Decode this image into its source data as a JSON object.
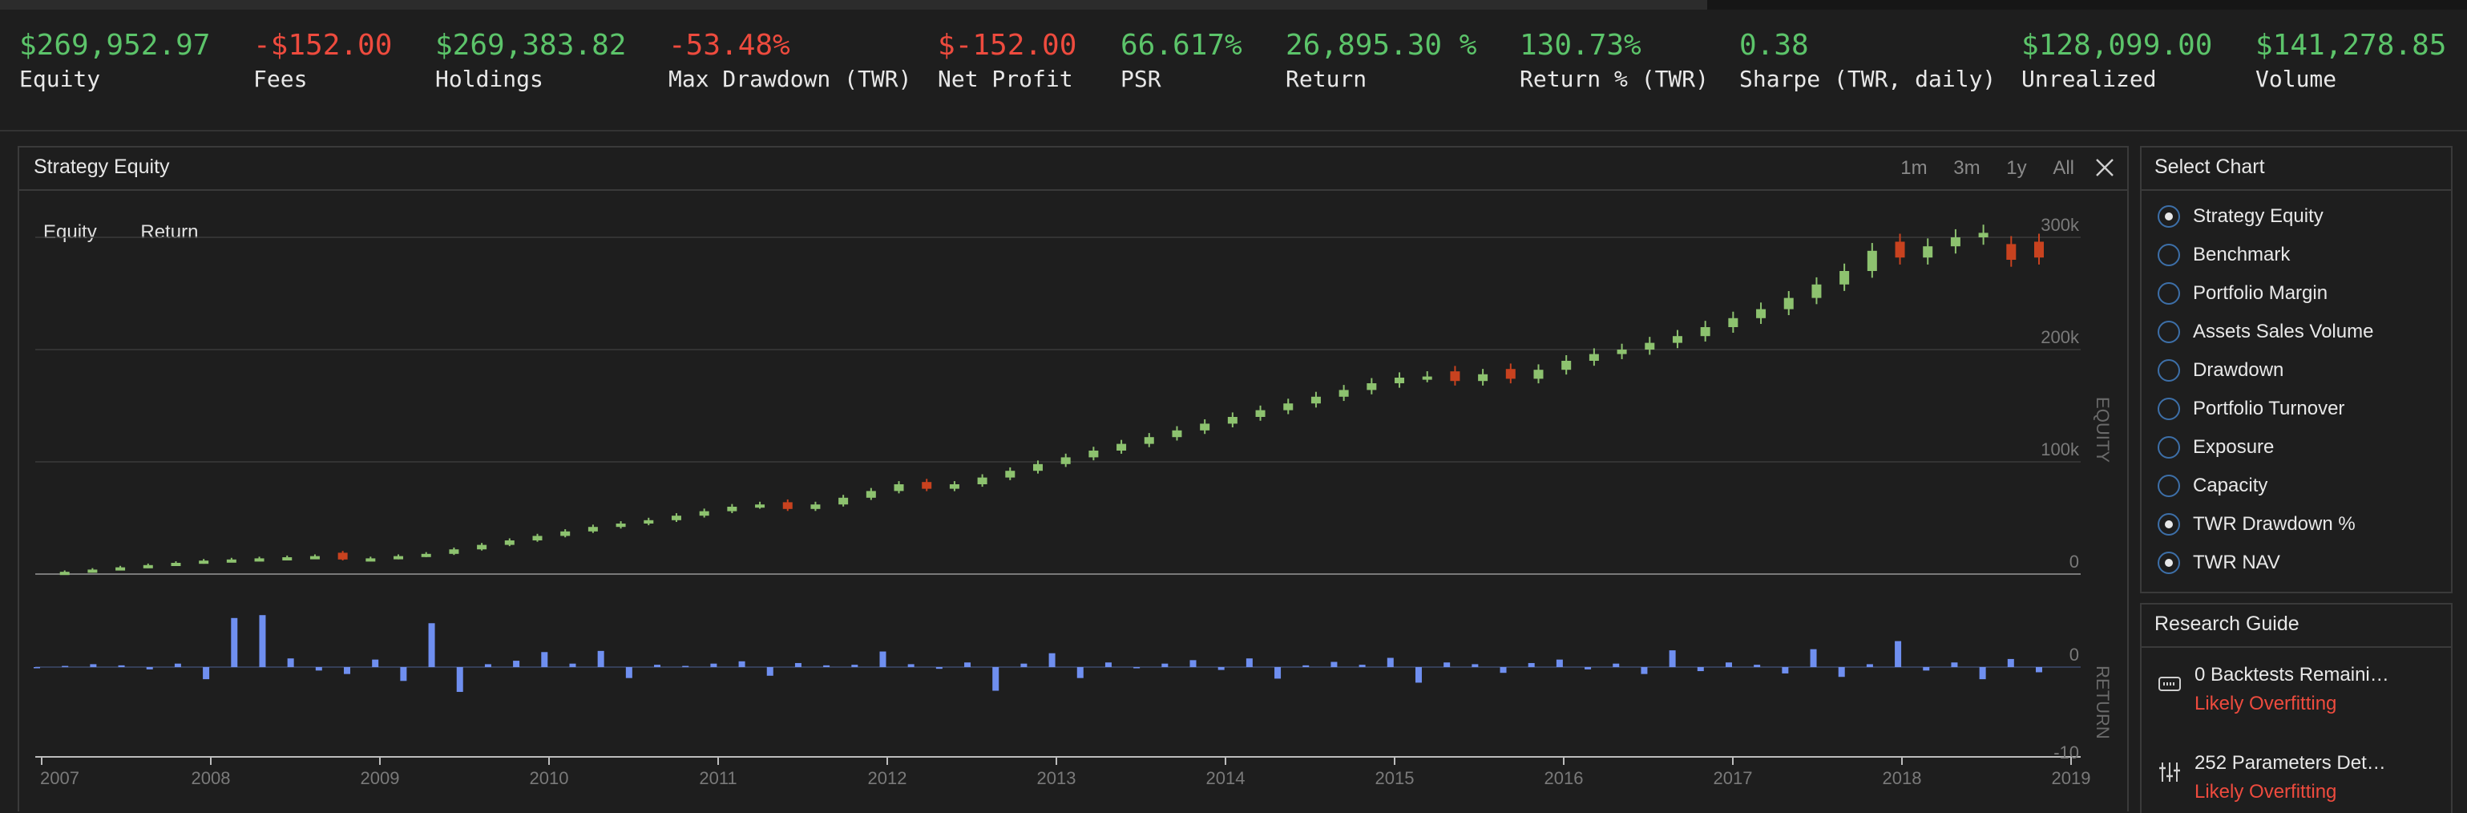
{
  "stats": [
    {
      "value": "$269,952.97",
      "label": "Equity",
      "color": "green"
    },
    {
      "value": "-$152.00",
      "label": "Fees",
      "color": "red"
    },
    {
      "value": "$269,383.82",
      "label": "Holdings",
      "color": "green"
    },
    {
      "value": "-53.48%",
      "label": "Max Drawdown (TWR)",
      "color": "red"
    },
    {
      "value": "$-152.00",
      "label": "Net Profit",
      "color": "red"
    },
    {
      "value": "66.617%",
      "label": "PSR",
      "color": "green"
    },
    {
      "value": "26,895.30 %",
      "label": "Return",
      "color": "green"
    },
    {
      "value": "130.73%",
      "label": "Return % (TWR)",
      "color": "green"
    },
    {
      "value": "0.38",
      "label": "Sharpe (TWR, daily)",
      "color": "green"
    },
    {
      "value": "$128,099.00",
      "label": "Unrealized",
      "color": "green"
    },
    {
      "value": "$141,278.85",
      "label": "Volume",
      "color": "green"
    }
  ],
  "chart_panel": {
    "title": "Strategy Equity",
    "ranges": [
      "1m",
      "3m",
      "1y",
      "All"
    ],
    "legend": [
      "Equity",
      "Return"
    ]
  },
  "chart_data": {
    "type": "candlestick",
    "x_range": [
      "2007",
      "2019"
    ],
    "x_ticks": [
      "2007",
      "2008",
      "2009",
      "2010",
      "2011",
      "2012",
      "2013",
      "2014",
      "2015",
      "2016",
      "2017",
      "2018",
      "2019"
    ],
    "equity": {
      "axis_label": "EQUITY",
      "y_ticks": [
        "0",
        "100k",
        "200k",
        "300k"
      ],
      "ylim": [
        0,
        300000
      ],
      "close_values": [
        0,
        2000,
        4000,
        6000,
        8000,
        10000,
        12000,
        13000,
        14000,
        15000,
        16000,
        13000,
        14000,
        16000,
        18000,
        22000,
        26000,
        30000,
        34000,
        38000,
        42000,
        45000,
        48000,
        52000,
        56000,
        60000,
        62000,
        58000,
        62000,
        68000,
        74000,
        80000,
        76000,
        80000,
        86000,
        92000,
        98000,
        104000,
        110000,
        116000,
        122000,
        128000,
        134000,
        140000,
        146000,
        152000,
        158000,
        164000,
        170000,
        175000,
        176000,
        172000,
        178000,
        174000,
        182000,
        190000,
        196000,
        200000,
        206000,
        212000,
        220000,
        228000,
        236000,
        246000,
        258000,
        270000,
        288000,
        282000,
        292000,
        300000,
        304000,
        280000,
        282000
      ],
      "down_candles": [
        11,
        27,
        32,
        51,
        53,
        67,
        71,
        72
      ]
    },
    "return": {
      "axis_label": "RETURN",
      "y_ticks": [
        "0",
        "-10"
      ],
      "values": [
        0,
        0.2,
        0.5,
        0.3,
        -0.4,
        0.6,
        -2.1,
        8.5,
        9.0,
        1.5,
        -0.6,
        -1.2,
        1.3,
        -2.4,
        7.6,
        -4.3,
        0.5,
        1.1,
        2.6,
        0.6,
        2.8,
        -1.9,
        0.4,
        0.2,
        0.6,
        1.0,
        -1.5,
        0.7,
        0.3,
        0.4,
        2.7,
        0.5,
        -0.3,
        0.8,
        -4.1,
        0.6,
        2.4,
        -1.9,
        0.8,
        -0.2,
        0.6,
        1.2,
        -0.5,
        1.5,
        -2.0,
        0.3,
        0.9,
        0.4,
        1.6,
        -2.7,
        0.8,
        0.5,
        -1.0,
        0.7,
        1.3,
        -0.4,
        0.6,
        -1.2,
        2.9,
        -0.7,
        0.8,
        0.4,
        -1.1,
        3.1,
        -1.7,
        0.5,
        4.5,
        -0.6,
        0.8,
        -2.1,
        1.4,
        -0.9
      ]
    }
  },
  "select_chart": {
    "title": "Select Chart",
    "options": [
      {
        "label": "Strategy Equity",
        "checked": true
      },
      {
        "label": "Benchmark",
        "checked": false
      },
      {
        "label": "Portfolio Margin",
        "checked": false
      },
      {
        "label": "Assets Sales Volume",
        "checked": false
      },
      {
        "label": "Drawdown",
        "checked": false
      },
      {
        "label": "Portfolio Turnover",
        "checked": false
      },
      {
        "label": "Exposure",
        "checked": false
      },
      {
        "label": "Capacity",
        "checked": false
      },
      {
        "label": "TWR Drawdown %",
        "checked": true
      },
      {
        "label": "TWR NAV",
        "checked": true
      }
    ]
  },
  "research_guide": {
    "title": "Research Guide",
    "items": [
      {
        "title": "0 Backtests Remaini…",
        "status": "Likely Overfitting",
        "icon": "keyboard-icon"
      },
      {
        "title": "252 Parameters Det…",
        "status": "Likely Overfitting",
        "icon": "sliders-icon"
      }
    ]
  },
  "colors": {
    "up": "#8dc26f",
    "down": "#c8421f",
    "return_bar": "#6f8ff0",
    "green_text": "#5cc46a",
    "red_text": "#ee4b3e",
    "radio_border": "#3d6fa8"
  }
}
